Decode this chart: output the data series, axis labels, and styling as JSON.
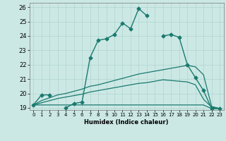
{
  "xlabel": "Humidex (Indice chaleur)",
  "ylabel": "",
  "background_color": "#cce8e5",
  "grid_color": "#b0d4d0",
  "line_color": "#1a7a6e",
  "xlim": [
    -0.5,
    23.5
  ],
  "ylim": [
    18.85,
    26.3
  ],
  "xticks": [
    0,
    1,
    2,
    3,
    4,
    5,
    6,
    7,
    8,
    9,
    10,
    11,
    12,
    13,
    14,
    15,
    16,
    17,
    18,
    19,
    20,
    21,
    22,
    23
  ],
  "yticks": [
    19,
    20,
    21,
    22,
    23,
    24,
    25,
    26
  ],
  "series": [
    {
      "x": [
        0,
        1,
        2,
        3,
        4,
        5,
        6,
        7,
        8,
        9,
        10,
        11,
        12,
        13,
        14,
        15,
        16,
        17,
        18,
        19,
        20,
        21,
        22,
        23
      ],
      "y": [
        19.2,
        19.9,
        19.9,
        null,
        19.0,
        19.3,
        19.4,
        22.5,
        23.7,
        23.8,
        24.1,
        24.9,
        24.5,
        25.9,
        25.4,
        null,
        24.0,
        24.1,
        23.9,
        22.0,
        21.1,
        20.2,
        18.95,
        18.95
      ],
      "marker": "D",
      "linewidth": 1.0,
      "markersize": 2.5
    },
    {
      "x": [
        0,
        1,
        2,
        3,
        4,
        5,
        6,
        7,
        8,
        9,
        10,
        11,
        12,
        13,
        14,
        15,
        16,
        17,
        18,
        19,
        20,
        21,
        22,
        23
      ],
      "y": [
        19.2,
        19.5,
        19.7,
        19.9,
        20.0,
        20.15,
        20.3,
        20.5,
        20.6,
        20.75,
        20.9,
        21.05,
        21.2,
        21.35,
        21.45,
        21.55,
        21.65,
        21.75,
        21.85,
        21.95,
        21.85,
        21.3,
        19.1,
        18.95
      ],
      "marker": null,
      "linewidth": 0.9,
      "markersize": 0
    },
    {
      "x": [
        0,
        1,
        2,
        3,
        4,
        5,
        6,
        7,
        8,
        9,
        10,
        11,
        12,
        13,
        14,
        15,
        16,
        17,
        18,
        19,
        20,
        21,
        22,
        23
      ],
      "y": [
        19.2,
        19.35,
        19.5,
        19.65,
        19.75,
        19.85,
        19.95,
        20.1,
        20.2,
        20.3,
        20.4,
        20.5,
        20.6,
        20.7,
        20.75,
        20.85,
        20.95,
        20.9,
        20.85,
        20.8,
        20.6,
        19.6,
        19.05,
        18.95
      ],
      "marker": null,
      "linewidth": 0.9,
      "markersize": 0
    },
    {
      "x": [
        0,
        1,
        2,
        3,
        4,
        5,
        6,
        7,
        8,
        9,
        10,
        11,
        12,
        13,
        14,
        15,
        16,
        17,
        18,
        19,
        20,
        21,
        22,
        23
      ],
      "y": [
        19.2,
        19.2,
        19.2,
        19.2,
        19.2,
        19.2,
        19.2,
        19.2,
        19.2,
        19.2,
        19.2,
        19.2,
        19.2,
        19.2,
        19.2,
        19.2,
        19.2,
        19.2,
        19.2,
        19.2,
        19.2,
        19.2,
        18.95,
        18.95
      ],
      "marker": null,
      "linewidth": 0.9,
      "markersize": 0
    }
  ]
}
